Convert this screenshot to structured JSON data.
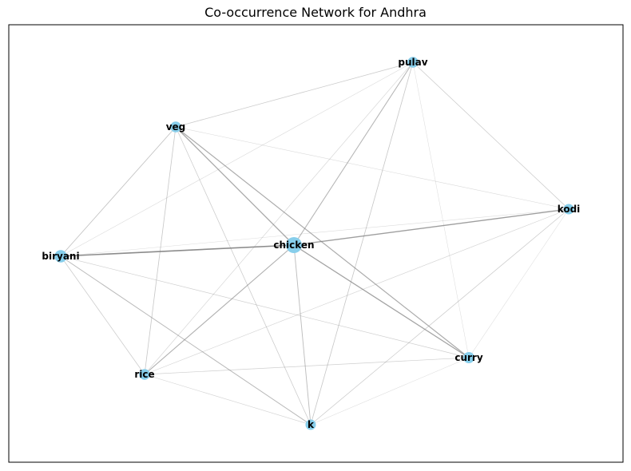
{
  "title": "Co-occurrence Network for Andhra",
  "colors": {
    "node": "#87ceeb",
    "edge": "#808080",
    "frame": "#000000"
  },
  "nodes": [
    {
      "id": "chicken",
      "label": "chicken",
      "weight": 1.0
    },
    {
      "id": "biryani",
      "label": "biryani",
      "weight": 0.55
    },
    {
      "id": "veg",
      "label": "veg",
      "weight": 0.35
    },
    {
      "id": "pulav",
      "label": "pulav",
      "weight": 0.35
    },
    {
      "id": "kodi",
      "label": "kodi",
      "weight": 0.3
    },
    {
      "id": "curry",
      "label": "curry",
      "weight": 0.4
    },
    {
      "id": "rice",
      "label": "rice",
      "weight": 0.35
    },
    {
      "id": "k",
      "label": "k",
      "weight": 0.3
    }
  ],
  "edges": [
    {
      "source": "chicken",
      "target": "biryani",
      "weight": 1.0
    },
    {
      "source": "chicken",
      "target": "kodi",
      "weight": 0.8
    },
    {
      "source": "chicken",
      "target": "curry",
      "weight": 0.75
    },
    {
      "source": "chicken",
      "target": "veg",
      "weight": 0.7
    },
    {
      "source": "chicken",
      "target": "rice",
      "weight": 0.6
    },
    {
      "source": "chicken",
      "target": "pulav",
      "weight": 0.55
    },
    {
      "source": "chicken",
      "target": "k",
      "weight": 0.45
    },
    {
      "source": "veg",
      "target": "curry",
      "weight": 0.65
    },
    {
      "source": "veg",
      "target": "biryani",
      "weight": 0.4
    },
    {
      "source": "veg",
      "target": "pulav",
      "weight": 0.3
    },
    {
      "source": "veg",
      "target": "rice",
      "weight": 0.35
    },
    {
      "source": "veg",
      "target": "k",
      "weight": 0.3
    },
    {
      "source": "veg",
      "target": "kodi",
      "weight": 0.15
    },
    {
      "source": "biryani",
      "target": "k",
      "weight": 0.5
    },
    {
      "source": "biryani",
      "target": "rice",
      "weight": 0.3
    },
    {
      "source": "biryani",
      "target": "curry",
      "weight": 0.25
    },
    {
      "source": "biryani",
      "target": "pulav",
      "weight": 0.15
    },
    {
      "source": "biryani",
      "target": "kodi",
      "weight": 0.12
    },
    {
      "source": "pulav",
      "target": "kodi",
      "weight": 0.3
    },
    {
      "source": "pulav",
      "target": "k",
      "weight": 0.35
    },
    {
      "source": "pulav",
      "target": "rice",
      "weight": 0.2
    },
    {
      "source": "pulav",
      "target": "curry",
      "weight": 0.12
    },
    {
      "source": "kodi",
      "target": "rice",
      "weight": 0.2
    },
    {
      "source": "kodi",
      "target": "k",
      "weight": 0.3
    },
    {
      "source": "kodi",
      "target": "curry",
      "weight": 0.12
    },
    {
      "source": "rice",
      "target": "curry",
      "weight": 0.25
    },
    {
      "source": "rice",
      "target": "k",
      "weight": 0.2
    },
    {
      "source": "curry",
      "target": "k",
      "weight": 0.12
    }
  ]
}
